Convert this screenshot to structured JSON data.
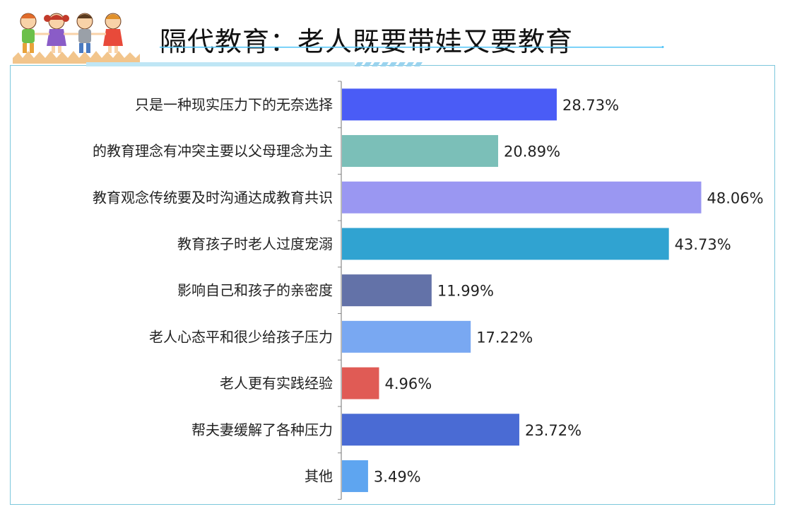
{
  "header": {
    "title": "隔代教育：老人既要带娃又要教育",
    "accent_color": "#4fc3f7",
    "logo": "children-cartoon-icon"
  },
  "chart_data": {
    "type": "bar",
    "orientation": "horizontal",
    "title": "隔代教育：老人既要带娃又要教育",
    "xlabel": "",
    "ylabel": "",
    "xlim": [
      0,
      50
    ],
    "grid": false,
    "categories": [
      "只是一种现实压力下的无奈选择",
      "的教育理念有冲突主要以父母理念为主",
      "教育观念传统要及时沟通达成教育共识",
      "教育孩子时老人过度宠溺",
      "影响自己和孩子的亲密度",
      "老人心态平和很少给孩子压力",
      "老人更有实践经验",
      "帮夫妻缓解了各种压力",
      "其他"
    ],
    "values": [
      28.73,
      20.89,
      48.06,
      43.73,
      11.99,
      17.22,
      4.96,
      23.72,
      3.49
    ],
    "value_labels": [
      "28.73%",
      "20.89%",
      "48.06%",
      "43.73%",
      "11.99%",
      "17.22%",
      "4.96%",
      "23.72%",
      "3.49%"
    ],
    "colors": [
      "#4a5cf6",
      "#7bbfb8",
      "#9a97f2",
      "#30a3d1",
      "#6372a8",
      "#79a8f2",
      "#e05b55",
      "#4a6bd4",
      "#5ea5f0"
    ]
  }
}
